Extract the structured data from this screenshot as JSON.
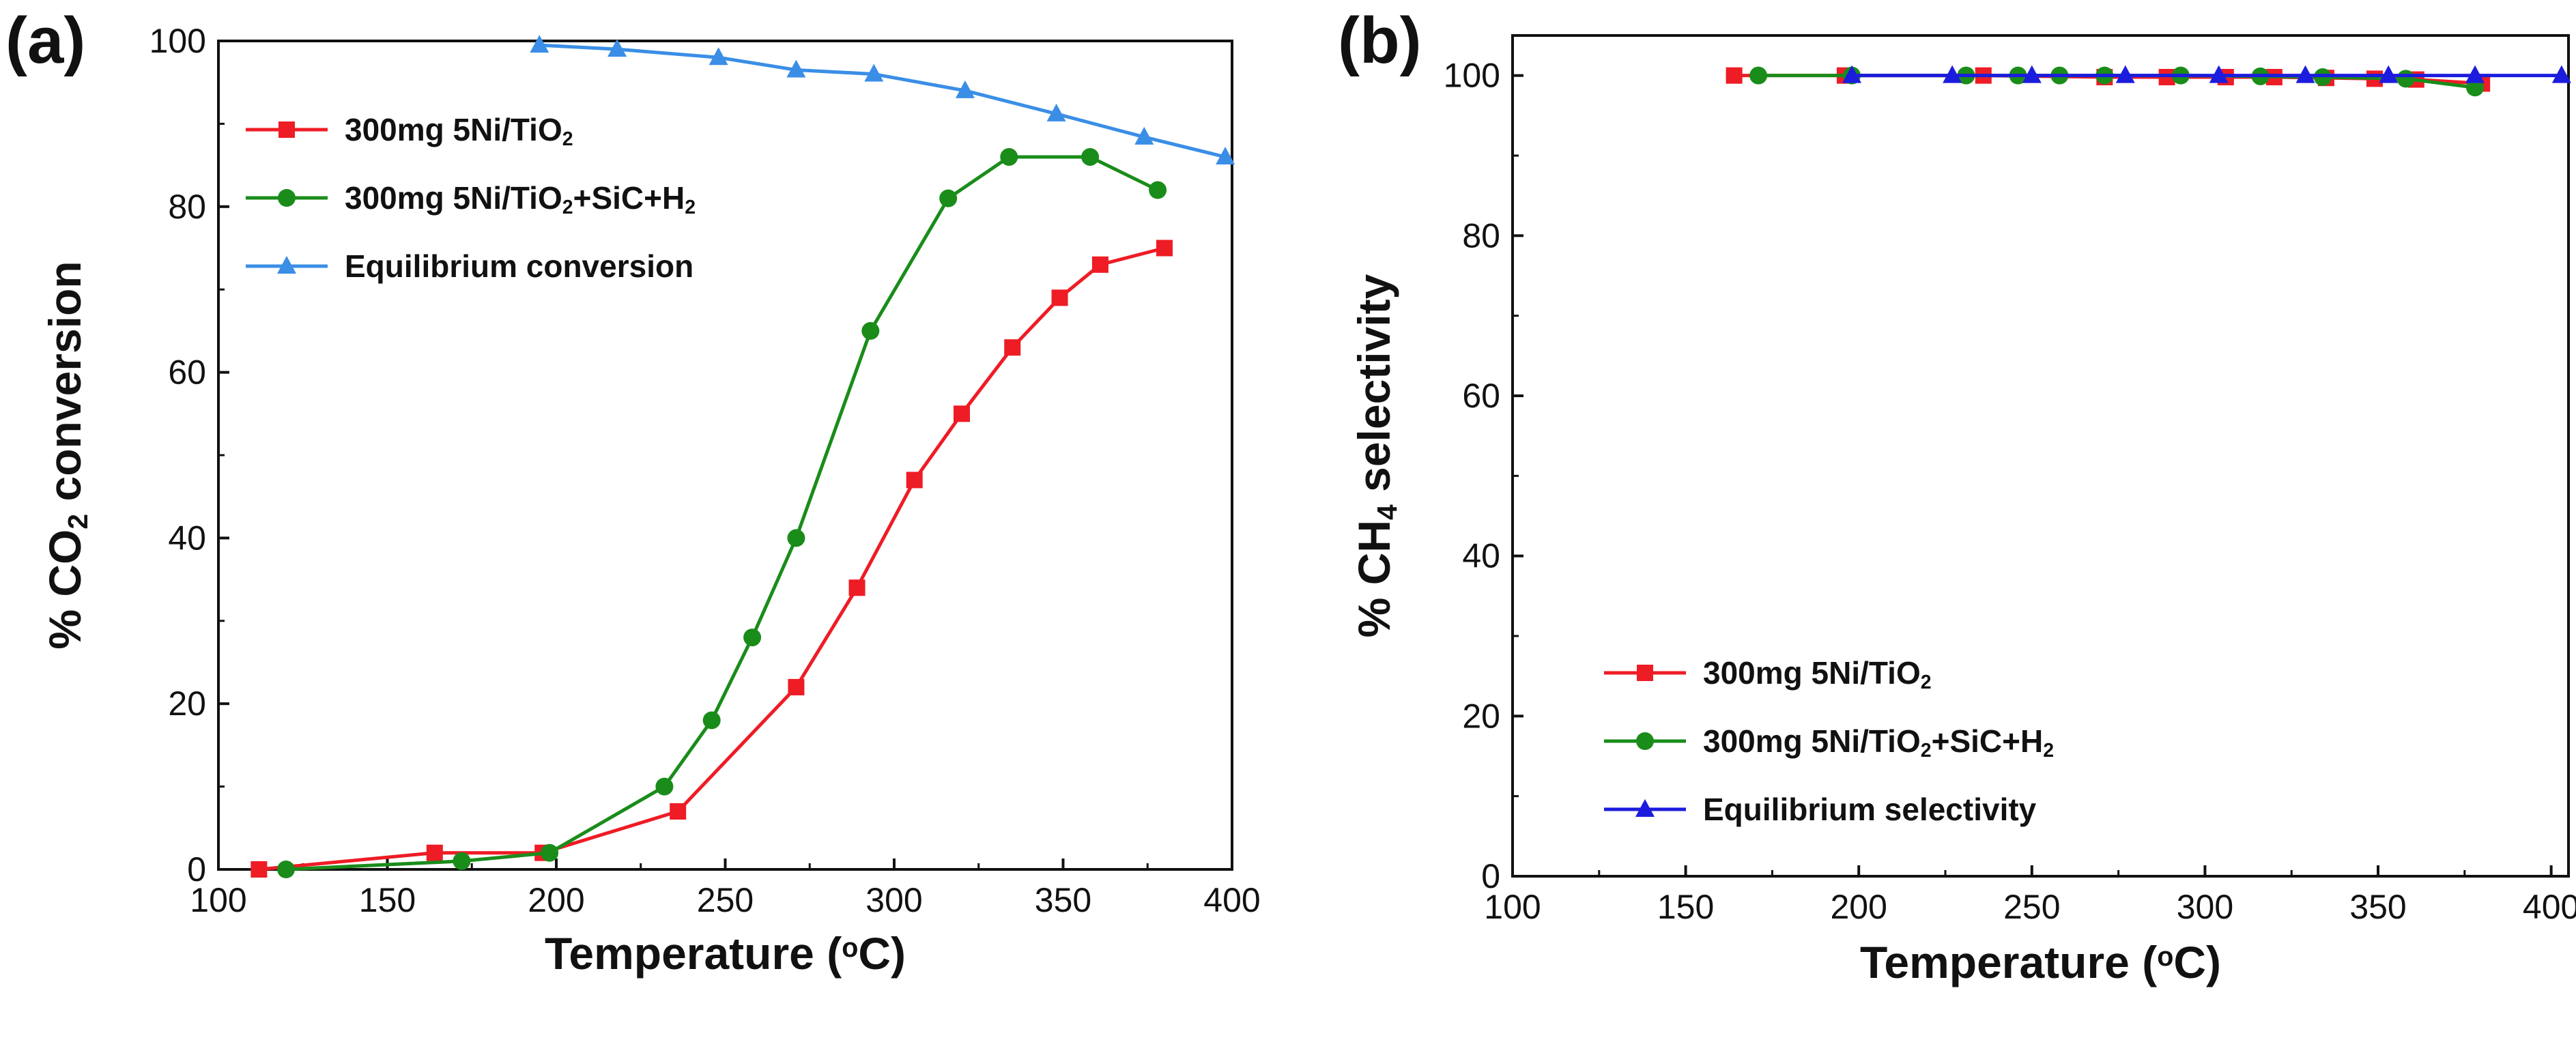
{
  "chart_data": [
    {
      "id": "a",
      "type": "line",
      "panel_label": "(a)",
      "xlabel": "Temperature (°C)",
      "xlabel_parts": [
        "Temperature (",
        "o",
        "C)"
      ],
      "ylabel": "% CO2 conversion",
      "ylabel_parts": [
        "% CO",
        "2",
        " conversion"
      ],
      "xlim": [
        100,
        400
      ],
      "ylim": [
        0,
        100
      ],
      "xticks": [
        100,
        150,
        200,
        250,
        300,
        350,
        400
      ],
      "yticks": [
        0,
        20,
        40,
        60,
        80,
        100
      ],
      "legend_position": "top-left",
      "series": [
        {
          "name": "300mg 5Ni/TiO2",
          "label_parts": [
            "300mg 5Ni/TiO",
            "2",
            ""
          ],
          "color": "#ee1c25",
          "marker": "square",
          "x": [
            112,
            164,
            196,
            236,
            271,
            289,
            306,
            320,
            335,
            349,
            361,
            380
          ],
          "y": [
            0,
            2,
            2,
            7,
            22,
            34,
            47,
            55,
            63,
            69,
            73,
            75
          ]
        },
        {
          "name": "300mg 5Ni/TiO2+SiC+H2",
          "label_parts": [
            "300mg 5Ni/TiO",
            "2",
            "+SiC+H",
            "2",
            ""
          ],
          "color": "#1a8c1a",
          "marker": "circle",
          "x": [
            120,
            172,
            198,
            232,
            246,
            258,
            271,
            293,
            316,
            334,
            358,
            378
          ],
          "y": [
            0,
            1,
            2,
            10,
            18,
            28,
            40,
            65,
            81,
            86,
            86,
            82
          ]
        },
        {
          "name": "Equilibrium conversion",
          "label_parts": [
            "Equilibrium conversion"
          ],
          "color": "#3a8ee6",
          "marker": "triangle",
          "x": [
            195,
            218,
            248,
            271,
            294,
            321,
            348,
            374,
            398
          ],
          "y": [
            99.5,
            99,
            98,
            96.5,
            96,
            94,
            91.2,
            88.4,
            86
          ]
        }
      ]
    },
    {
      "id": "b",
      "type": "line",
      "panel_label": "(b)",
      "xlabel": "Temperature (°C)",
      "xlabel_parts": [
        "Temperature (",
        "o",
        "C)"
      ],
      "ylabel": "% CH4 selectivity",
      "ylabel_parts": [
        "% CH",
        "4",
        " selectivity"
      ],
      "xlim": [
        100,
        405
      ],
      "ylim": [
        0,
        105
      ],
      "xticks": [
        100,
        150,
        200,
        250,
        300,
        350,
        400
      ],
      "yticks": [
        0,
        20,
        40,
        60,
        80,
        100
      ],
      "legend_position": "bottom-left",
      "series": [
        {
          "name": "300mg 5Ni/TiO2",
          "label_parts": [
            "300mg 5Ni/TiO",
            "2",
            ""
          ],
          "color": "#ee1c25",
          "marker": "square",
          "x": [
            164,
            196,
            236,
            271,
            289,
            306,
            320,
            335,
            349,
            361,
            380
          ],
          "y": [
            100,
            100,
            100,
            99.8,
            99.8,
            99.8,
            99.8,
            99.7,
            99.6,
            99.5,
            99
          ]
        },
        {
          "name": "300mg 5Ni/TiO2+SiC+H2",
          "label_parts": [
            "300mg 5Ni/TiO",
            "2",
            "+SiC+H",
            "2",
            ""
          ],
          "color": "#1a8c1a",
          "marker": "circle",
          "x": [
            171,
            198,
            231,
            246,
            258,
            271,
            293,
            316,
            334,
            358,
            378
          ],
          "y": [
            100,
            100,
            100,
            100,
            100,
            100,
            100,
            99.9,
            99.8,
            99.6,
            98.5
          ]
        },
        {
          "name": "Equilibrium selectivity",
          "label_parts": [
            "Equilibrium selectivity"
          ],
          "color": "#1c1cde",
          "marker": "triangle",
          "x": [
            198,
            227,
            250,
            277,
            304,
            329,
            353,
            378,
            403
          ],
          "y": [
            100,
            100,
            100,
            100,
            100,
            100,
            100,
            100,
            100
          ]
        }
      ]
    }
  ]
}
